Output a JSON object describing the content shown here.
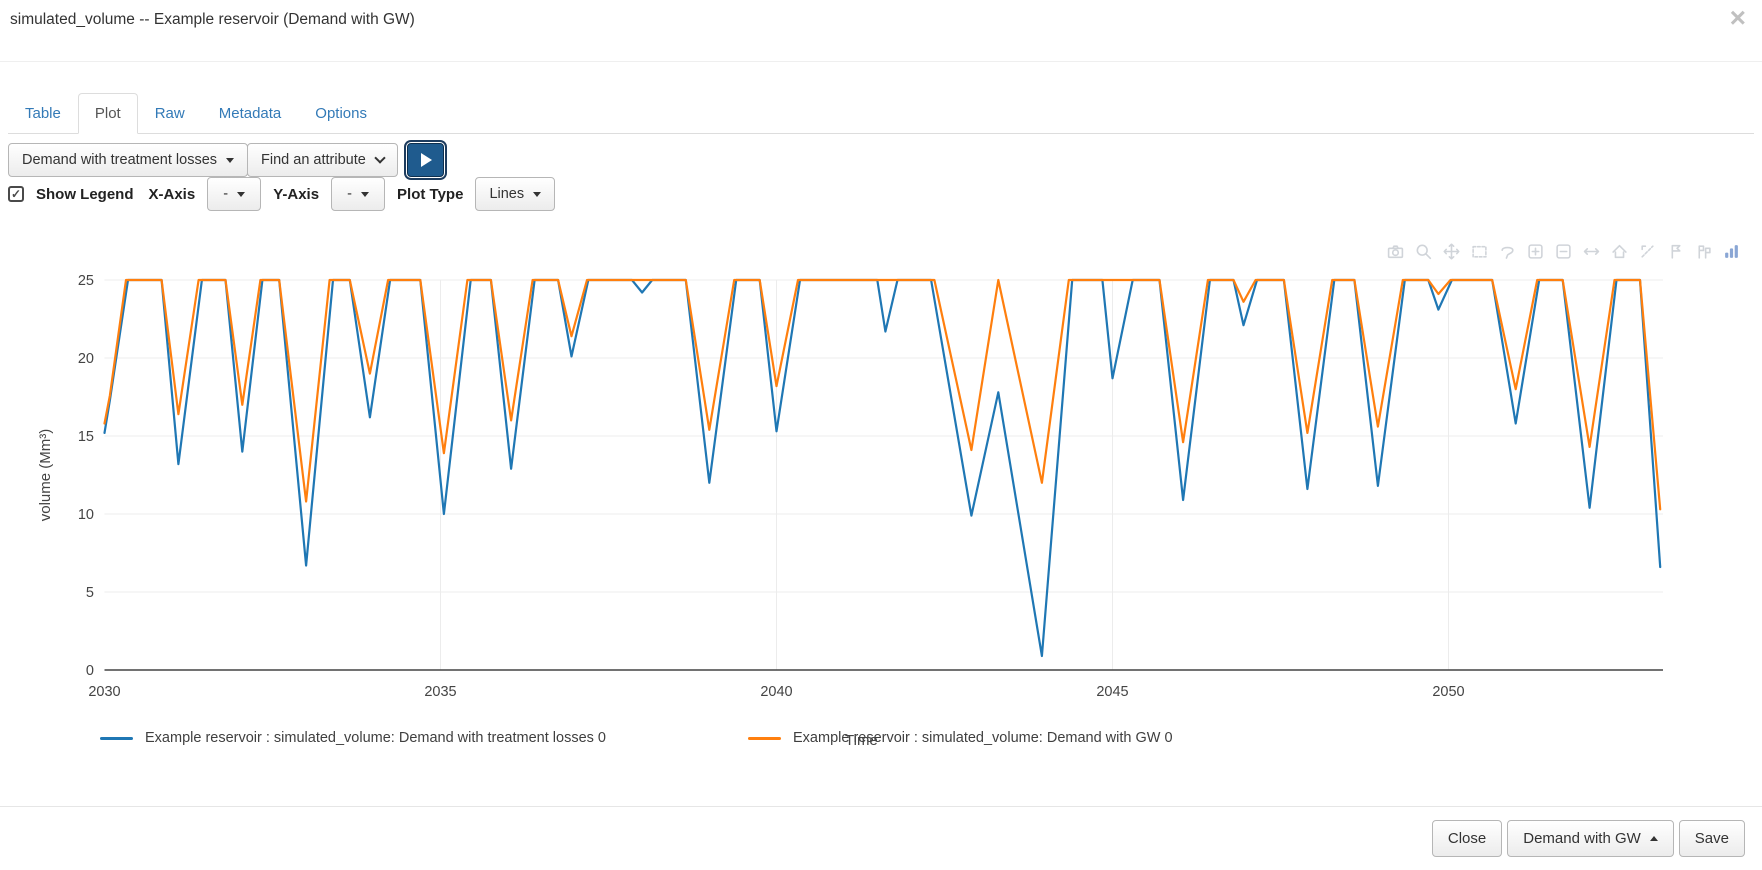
{
  "modal": {
    "title": "simulated_volume -- Example reservoir (Demand with GW)",
    "close_icon": "×"
  },
  "tabs": [
    {
      "label": "Table",
      "active": false
    },
    {
      "label": "Plot",
      "active": true
    },
    {
      "label": "Raw",
      "active": false
    },
    {
      "label": "Metadata",
      "active": false
    },
    {
      "label": "Options",
      "active": false
    }
  ],
  "toolbar": {
    "scenario_dropdown_value": "Demand with treatment losses",
    "attribute_dropdown_value": "Find an attribute",
    "play_button": "play-icon"
  },
  "plot_controls": {
    "show_legend_label": "Show Legend",
    "show_legend_checked": true,
    "check_glyph": "✓",
    "x_axis_label": "X-Axis",
    "x_axis_value": "-",
    "y_axis_label": "Y-Axis",
    "y_axis_value": "-",
    "plot_type_label": "Plot Type",
    "plot_type_value": "Lines"
  },
  "modebar": {
    "icon_color": "#d0d4d9",
    "logo_color": "#8aa6d4",
    "icons": [
      "camera-icon",
      "zoom-icon",
      "pan-icon",
      "box-select-icon",
      "lasso-select-icon",
      "zoom-in-icon",
      "zoom-out-icon",
      "autoscale-icon",
      "reset-axes-icon",
      "toggle-spikelines-icon",
      "hover-closest-icon",
      "hover-compare-icon",
      "plotly-logo-icon"
    ]
  },
  "chart_data": {
    "type": "line",
    "title": "",
    "xlabel": "Time",
    "ylabel": "volume (Mm³)",
    "x_ticks": [
      2030,
      2035,
      2040,
      2045,
      2050
    ],
    "xlim": [
      2030,
      2053.2
    ],
    "y_ticks": [
      0,
      5,
      10,
      15,
      20,
      25
    ],
    "ylim": [
      0,
      25.6
    ],
    "grid": true,
    "legend_position": "bottom",
    "axis_color": "#444444",
    "grid_color": "#ececec",
    "zero_line_color": "#444444",
    "series": [
      {
        "name": "Example reservoir : simulated_volume: Demand with treatment losses 0",
        "color": "#1f77b4",
        "points": [
          [
            2030.0,
            15.2
          ],
          [
            2030.08,
            17.3
          ],
          [
            2030.35,
            25
          ],
          [
            2030.85,
            25
          ],
          [
            2031.1,
            13.2
          ],
          [
            2031.45,
            25
          ],
          [
            2031.8,
            25
          ],
          [
            2032.05,
            14.0
          ],
          [
            2032.35,
            25
          ],
          [
            2032.6,
            25
          ],
          [
            2033.0,
            6.7
          ],
          [
            2033.4,
            25
          ],
          [
            2033.65,
            25
          ],
          [
            2033.95,
            16.2
          ],
          [
            2034.25,
            25
          ],
          [
            2034.7,
            25
          ],
          [
            2035.05,
            10.0
          ],
          [
            2035.45,
            25
          ],
          [
            2035.75,
            25
          ],
          [
            2036.05,
            12.9
          ],
          [
            2036.4,
            25
          ],
          [
            2036.75,
            25
          ],
          [
            2036.95,
            20.1
          ],
          [
            2037.2,
            25
          ],
          [
            2037.85,
            25
          ],
          [
            2038.0,
            24.2
          ],
          [
            2038.15,
            25
          ],
          [
            2038.65,
            25
          ],
          [
            2039.0,
            12.0
          ],
          [
            2039.4,
            25
          ],
          [
            2039.75,
            25
          ],
          [
            2040.0,
            15.3
          ],
          [
            2040.35,
            25
          ],
          [
            2041.5,
            25
          ],
          [
            2041.62,
            21.7
          ],
          [
            2041.8,
            25
          ],
          [
            2042.3,
            25
          ],
          [
            2042.9,
            9.9
          ],
          [
            2043.3,
            17.8
          ],
          [
            2043.95,
            0.9
          ],
          [
            2044.4,
            25
          ],
          [
            2044.85,
            25
          ],
          [
            2045.0,
            18.7
          ],
          [
            2045.3,
            25
          ],
          [
            2045.7,
            25
          ],
          [
            2046.05,
            10.9
          ],
          [
            2046.45,
            25
          ],
          [
            2046.8,
            25
          ],
          [
            2046.95,
            22.1
          ],
          [
            2047.15,
            25
          ],
          [
            2047.55,
            25
          ],
          [
            2047.9,
            11.6
          ],
          [
            2048.3,
            25
          ],
          [
            2048.6,
            25
          ],
          [
            2048.95,
            11.8
          ],
          [
            2049.35,
            25
          ],
          [
            2049.7,
            25
          ],
          [
            2049.85,
            23.1
          ],
          [
            2050.05,
            25
          ],
          [
            2050.65,
            25
          ],
          [
            2051.0,
            15.8
          ],
          [
            2051.35,
            25
          ],
          [
            2051.7,
            25
          ],
          [
            2052.1,
            10.4
          ],
          [
            2052.5,
            25
          ],
          [
            2052.85,
            25
          ],
          [
            2053.15,
            6.6
          ]
        ]
      },
      {
        "name": "Example reservoir : simulated_volume: Demand with GW 0",
        "color": "#ff7f0e",
        "points": [
          [
            2030.0,
            15.8
          ],
          [
            2030.08,
            17.6
          ],
          [
            2030.32,
            25
          ],
          [
            2030.85,
            25
          ],
          [
            2031.1,
            16.4
          ],
          [
            2031.4,
            25
          ],
          [
            2031.8,
            25
          ],
          [
            2032.05,
            17.0
          ],
          [
            2032.32,
            25
          ],
          [
            2032.6,
            25
          ],
          [
            2033.0,
            10.8
          ],
          [
            2033.35,
            25
          ],
          [
            2033.65,
            25
          ],
          [
            2033.95,
            19.0
          ],
          [
            2034.22,
            25
          ],
          [
            2034.7,
            25
          ],
          [
            2035.05,
            13.9
          ],
          [
            2035.4,
            25
          ],
          [
            2035.75,
            25
          ],
          [
            2036.05,
            16.0
          ],
          [
            2036.37,
            25
          ],
          [
            2036.75,
            25
          ],
          [
            2036.95,
            21.4
          ],
          [
            2037.18,
            25
          ],
          [
            2038.65,
            25
          ],
          [
            2039.0,
            15.4
          ],
          [
            2039.37,
            25
          ],
          [
            2039.75,
            25
          ],
          [
            2040.0,
            18.2
          ],
          [
            2040.32,
            25
          ],
          [
            2042.35,
            25
          ],
          [
            2042.9,
            14.1
          ],
          [
            2043.3,
            25
          ],
          [
            2043.95,
            12.0
          ],
          [
            2044.35,
            25
          ],
          [
            2045.7,
            25
          ],
          [
            2046.05,
            14.6
          ],
          [
            2046.42,
            25
          ],
          [
            2046.8,
            25
          ],
          [
            2046.95,
            23.6
          ],
          [
            2047.13,
            25
          ],
          [
            2047.55,
            25
          ],
          [
            2047.9,
            15.2
          ],
          [
            2048.27,
            25
          ],
          [
            2048.6,
            25
          ],
          [
            2048.95,
            15.6
          ],
          [
            2049.32,
            25
          ],
          [
            2049.7,
            25
          ],
          [
            2049.85,
            24.1
          ],
          [
            2050.03,
            25
          ],
          [
            2050.65,
            25
          ],
          [
            2051.0,
            18.0
          ],
          [
            2051.32,
            25
          ],
          [
            2051.7,
            25
          ],
          [
            2052.1,
            14.3
          ],
          [
            2052.47,
            25
          ],
          [
            2052.85,
            25
          ],
          [
            2053.15,
            10.3
          ]
        ]
      }
    ]
  },
  "footer": {
    "close_label": "Close",
    "scenario_label": "Demand with GW",
    "save_label": "Save"
  }
}
